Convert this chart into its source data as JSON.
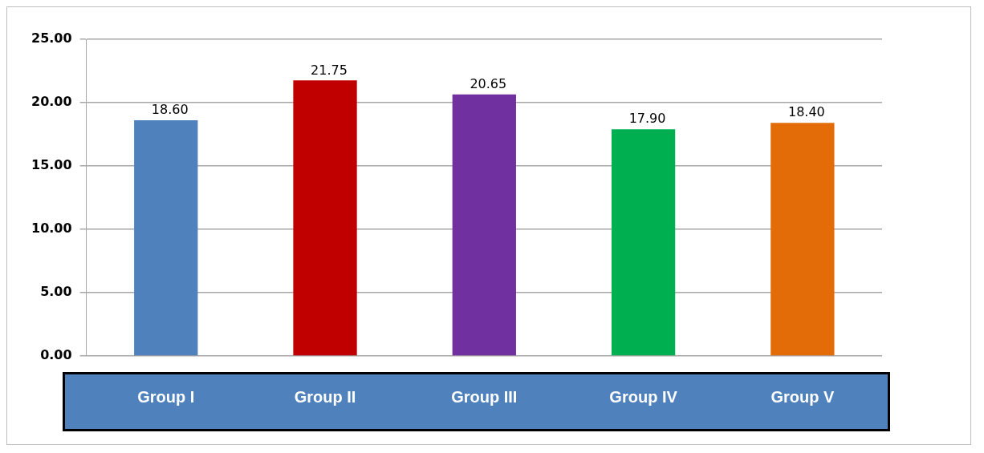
{
  "chart_data": {
    "type": "bar",
    "categories": [
      "Group I",
      "Group II",
      "Group III",
      "Group IV",
      "Group V"
    ],
    "values": [
      18.6,
      21.75,
      20.65,
      17.9,
      18.4
    ],
    "colors": [
      "#4f81bd",
      "#c00000",
      "#7030a0",
      "#00b050",
      "#e36c09"
    ],
    "ylim": [
      0,
      25
    ],
    "yticks": [
      {
        "value": 0,
        "label": "0.00"
      },
      {
        "value": 5,
        "label": "5.00"
      },
      {
        "value": 10,
        "label": "10.00"
      },
      {
        "value": 15,
        "label": "15.00"
      },
      {
        "value": 20,
        "label": "20.00"
      },
      {
        "value": 25,
        "label": "25.00"
      }
    ],
    "value_labels": [
      "18.60",
      "21.75",
      "20.65",
      "17.90",
      "18.40"
    ],
    "grid": "y",
    "legend": false
  }
}
